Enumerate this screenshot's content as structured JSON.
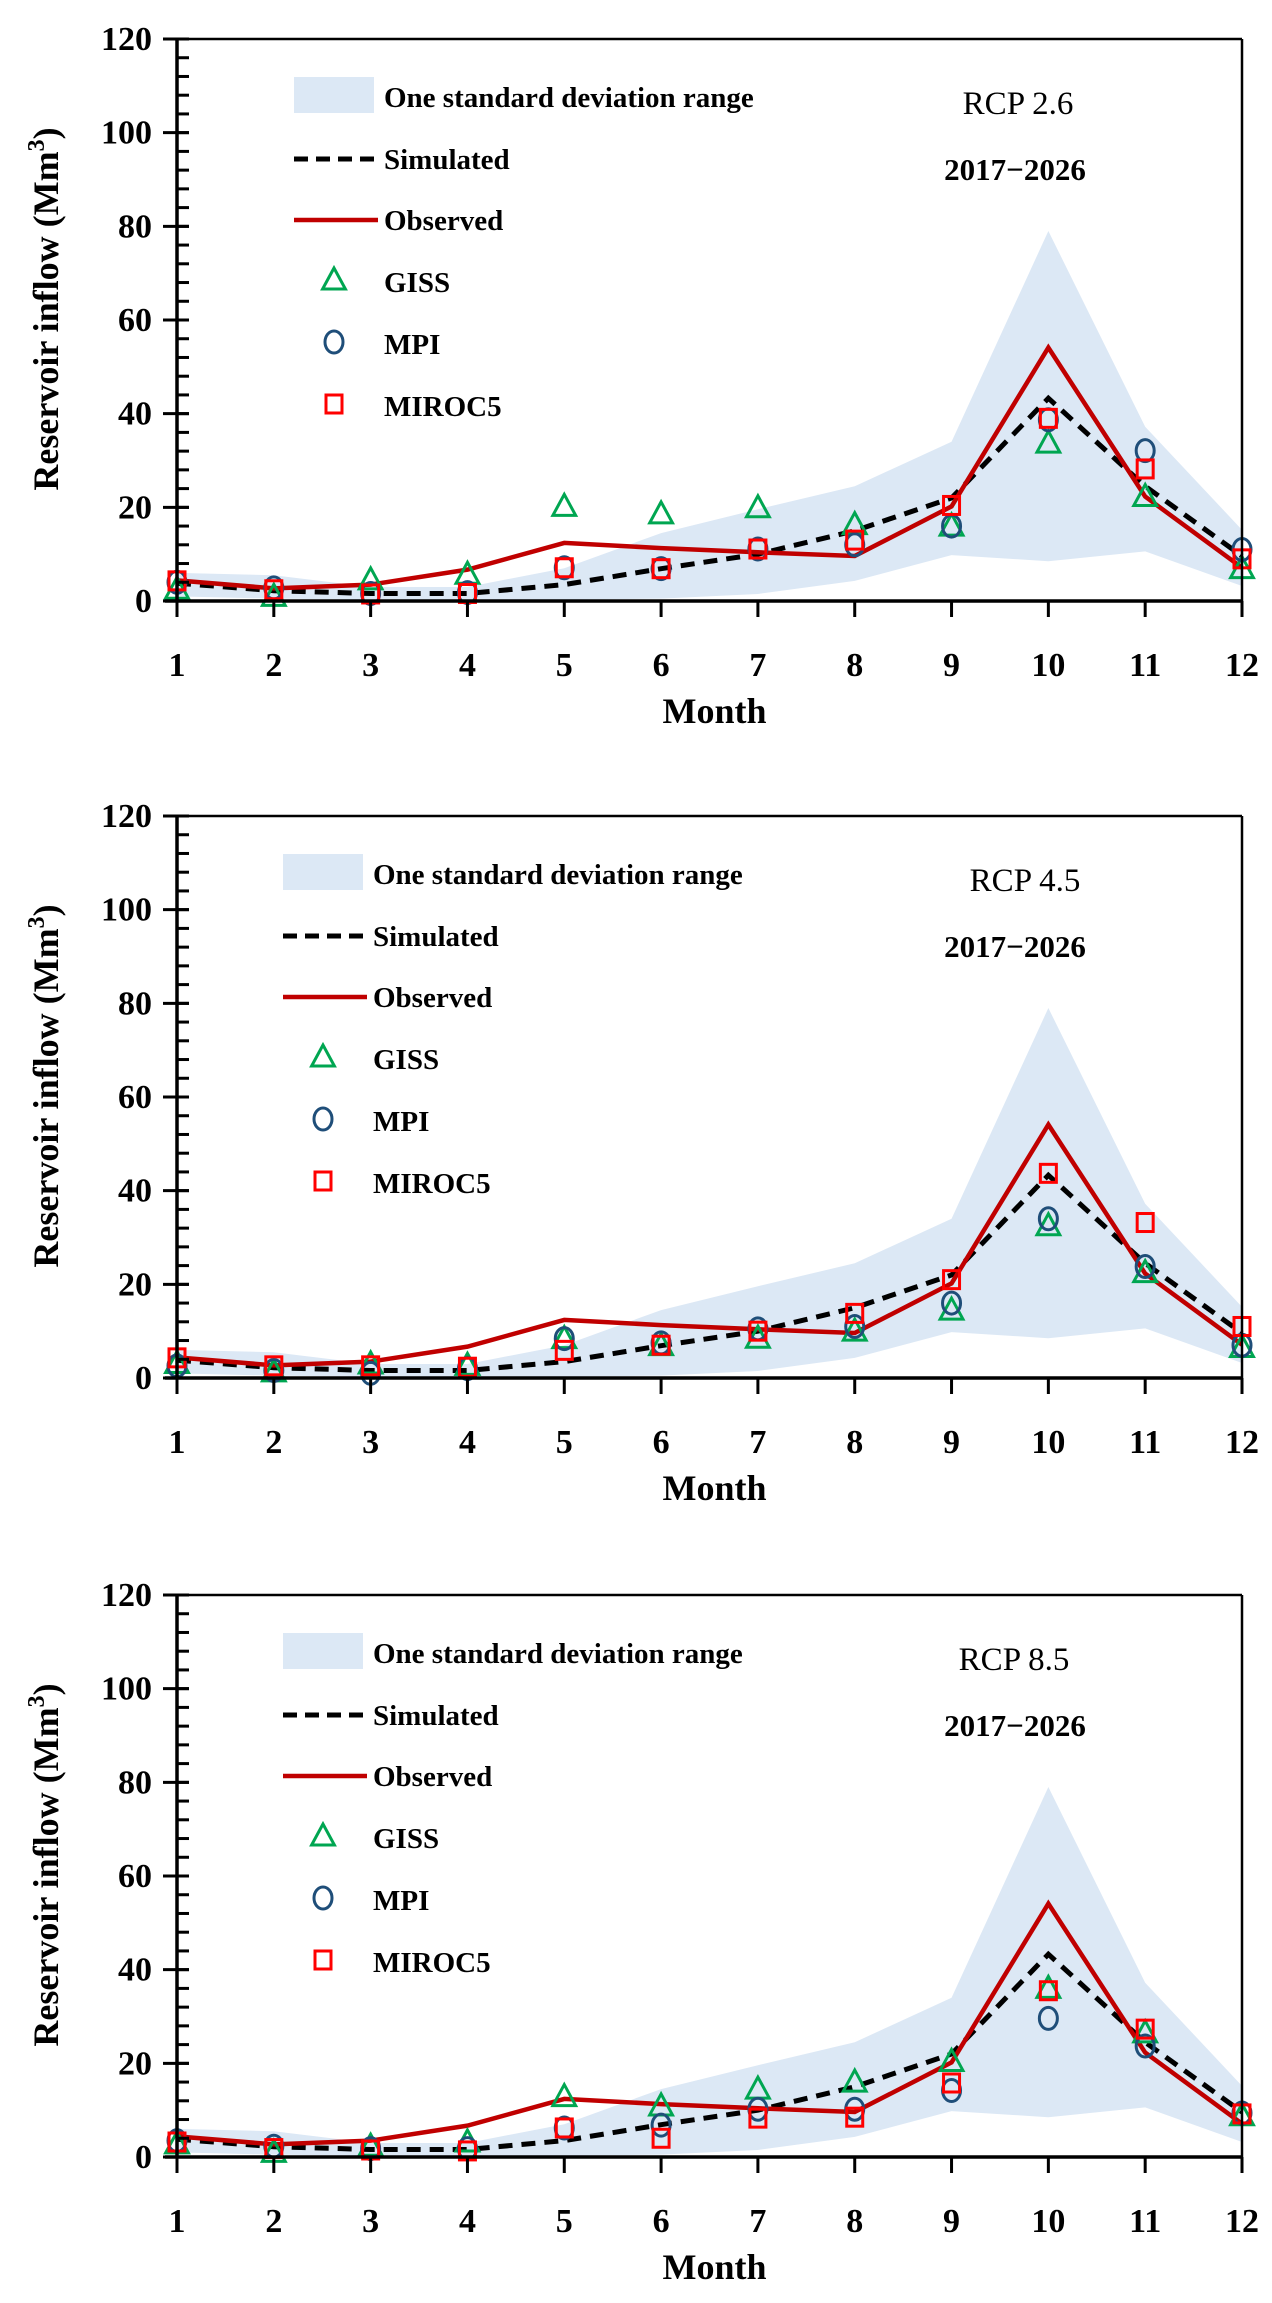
{
  "figure": {
    "panel_titles": [
      "RCP 2.6",
      "RCP 4.5",
      "RCP 8.5"
    ]
  },
  "colors": {
    "band": "#dce8f5",
    "simulated": "#000000",
    "observed": "#c00000",
    "giss": "#00a651",
    "mpi": "#1f4e79",
    "miroc5": "#ff0000",
    "axis": "#000000"
  },
  "legend": {
    "band": "One standard deviation range",
    "simulated": "Simulated",
    "observed": "Observed",
    "giss": "GISS",
    "mpi": "MPI",
    "miroc5": "MIROC5"
  },
  "chart_data": [
    {
      "type": "line",
      "title": "RCP 2.6",
      "subtitle": "2017−2026",
      "xlabel": "Month",
      "ylabel": "Reservoir inflow (Mm³)",
      "ylabel_main": "Reservoir inflow (Mm",
      "ylabel_sup": "3",
      "ylabel_close": ")",
      "x": [
        1,
        2,
        3,
        4,
        5,
        6,
        7,
        8,
        9,
        10,
        11,
        12
      ],
      "xlim": [
        1,
        12
      ],
      "ylim": [
        0,
        120
      ],
      "yticks": [
        0,
        20,
        40,
        60,
        80,
        100,
        120
      ],
      "ytick_minor_step": 4,
      "grid": false,
      "legend_position": "top-left",
      "band": {
        "name": "One standard deviation range",
        "lower": [
          1.0,
          0.5,
          0.3,
          0.3,
          0.3,
          0.5,
          1.5,
          4.3,
          9.8,
          8.5,
          10.6,
          3.2
        ],
        "upper": [
          6.0,
          5.5,
          3.0,
          3.0,
          7.0,
          14.5,
          19.6,
          24.5,
          34.0,
          79.0,
          37.2,
          15.2
        ]
      },
      "series": [
        {
          "name": "Simulated",
          "style": "dashed-line",
          "values": [
            3.8,
            2.2,
            1.6,
            1.6,
            3.5,
            6.9,
            10.0,
            15.0,
            22.0,
            43.3,
            24.5,
            9.6
          ]
        },
        {
          "name": "Observed",
          "style": "solid-line",
          "values": [
            4.4,
            2.7,
            3.5,
            6.7,
            12.4,
            11.3,
            10.4,
            9.6,
            20.2,
            54.1,
            22.3,
            7.1
          ]
        },
        {
          "name": "GISS",
          "style": "triangle",
          "values": [
            2.5,
            1.0,
            4.5,
            5.7,
            20.2,
            18.6,
            19.9,
            16.3,
            16.0,
            33.7,
            22.3,
            6.9
          ]
        },
        {
          "name": "MPI",
          "style": "circle",
          "values": [
            4.0,
            2.8,
            1.6,
            1.8,
            7.1,
            6.9,
            11.1,
            12.0,
            16.0,
            38.7,
            32.1,
            11.0
          ]
        },
        {
          "name": "MIROC5",
          "style": "square",
          "values": [
            4.3,
            2.4,
            1.5,
            1.6,
            7.1,
            6.9,
            11.1,
            13.0,
            20.4,
            39.0,
            28.2,
            9.0
          ]
        }
      ]
    },
    {
      "type": "line",
      "title": "RCP 4.5",
      "subtitle": "2017−2026",
      "xlabel": "Month",
      "ylabel": "Reservoir inflow (Mm³)",
      "ylabel_main": "Reservoir inflow (Mm",
      "ylabel_sup": "3",
      "ylabel_close": ")",
      "x": [
        1,
        2,
        3,
        4,
        5,
        6,
        7,
        8,
        9,
        10,
        11,
        12
      ],
      "xlim": [
        1,
        12
      ],
      "ylim": [
        0,
        120
      ],
      "yticks": [
        0,
        20,
        40,
        60,
        80,
        100,
        120
      ],
      "ytick_minor_step": 4,
      "grid": false,
      "legend_position": "top-left",
      "band": {
        "name": "One standard deviation range",
        "lower": [
          1.0,
          0.5,
          0.3,
          0.3,
          0.3,
          0.5,
          1.5,
          4.3,
          9.8,
          8.5,
          10.6,
          3.2
        ],
        "upper": [
          6.0,
          5.5,
          3.0,
          3.0,
          7.0,
          14.5,
          19.6,
          24.5,
          34.0,
          79.0,
          37.2,
          15.2
        ]
      },
      "series": [
        {
          "name": "Simulated",
          "style": "dashed-line",
          "values": [
            3.8,
            2.2,
            1.6,
            1.6,
            3.5,
            6.9,
            10.0,
            15.0,
            22.0,
            43.3,
            24.5,
            9.6
          ]
        },
        {
          "name": "Observed",
          "style": "solid-line",
          "values": [
            4.4,
            2.7,
            3.5,
            6.7,
            12.4,
            11.3,
            10.4,
            9.6,
            20.2,
            54.1,
            22.3,
            7.1
          ]
        },
        {
          "name": "GISS",
          "style": "triangle",
          "values": [
            3.1,
            1.3,
            3.0,
            2.7,
            8.4,
            6.9,
            8.5,
            10.0,
            14.5,
            32.5,
            22.5,
            6.5
          ]
        },
        {
          "name": "MPI",
          "style": "circle",
          "values": [
            2.6,
            1.6,
            1.0,
            2.0,
            8.4,
            7.5,
            10.5,
            11.0,
            16.0,
            34.0,
            23.8,
            7.0
          ]
        },
        {
          "name": "MIROC5",
          "style": "square",
          "values": [
            4.3,
            2.6,
            2.6,
            2.3,
            5.9,
            7.0,
            10.0,
            13.8,
            21.0,
            43.7,
            33.2,
            11.0
          ]
        }
      ]
    },
    {
      "type": "line",
      "title": "RCP 8.5",
      "subtitle": "2017−2026",
      "xlabel": "Month",
      "ylabel": "Reservoir inflow (Mm³)",
      "ylabel_main": "Reservoir inflow (Mm",
      "ylabel_sup": "3",
      "ylabel_close": ")",
      "x": [
        1,
        2,
        3,
        4,
        5,
        6,
        7,
        8,
        9,
        10,
        11,
        12
      ],
      "xlim": [
        1,
        12
      ],
      "ylim": [
        0,
        120
      ],
      "yticks": [
        0,
        20,
        40,
        60,
        80,
        100,
        120
      ],
      "ytick_minor_step": 4,
      "grid": false,
      "legend_position": "top-left",
      "band": {
        "name": "One standard deviation range",
        "lower": [
          1.0,
          0.5,
          0.3,
          0.3,
          0.3,
          0.5,
          1.5,
          4.3,
          9.8,
          8.5,
          10.6,
          3.2
        ],
        "upper": [
          6.0,
          5.5,
          3.0,
          3.0,
          7.0,
          14.5,
          19.6,
          24.5,
          34.0,
          79.0,
          37.2,
          15.2
        ]
      },
      "series": [
        {
          "name": "Simulated",
          "style": "dashed-line",
          "values": [
            3.8,
            2.2,
            1.6,
            1.6,
            3.5,
            6.9,
            10.0,
            15.0,
            22.0,
            43.3,
            24.5,
            9.6
          ]
        },
        {
          "name": "Observed",
          "style": "solid-line",
          "values": [
            4.4,
            2.7,
            3.5,
            6.7,
            12.4,
            11.3,
            10.4,
            9.6,
            20.2,
            54.1,
            22.3,
            7.1
          ]
        },
        {
          "name": "GISS",
          "style": "triangle",
          "values": [
            2.8,
            1.0,
            2.3,
            3.2,
            12.9,
            10.9,
            14.5,
            16.0,
            20.4,
            36.0,
            26.5,
            8.8
          ]
        },
        {
          "name": "MPI",
          "style": "circle",
          "values": [
            3.5,
            2.3,
            1.8,
            1.8,
            6.2,
            6.8,
            10.2,
            10.2,
            14.2,
            29.6,
            23.7,
            9.4
          ]
        },
        {
          "name": "MIROC5",
          "style": "square",
          "values": [
            3.2,
            1.8,
            1.5,
            1.3,
            6.2,
            4.0,
            8.3,
            8.5,
            15.8,
            35.5,
            27.3,
            9.2
          ]
        }
      ]
    }
  ]
}
